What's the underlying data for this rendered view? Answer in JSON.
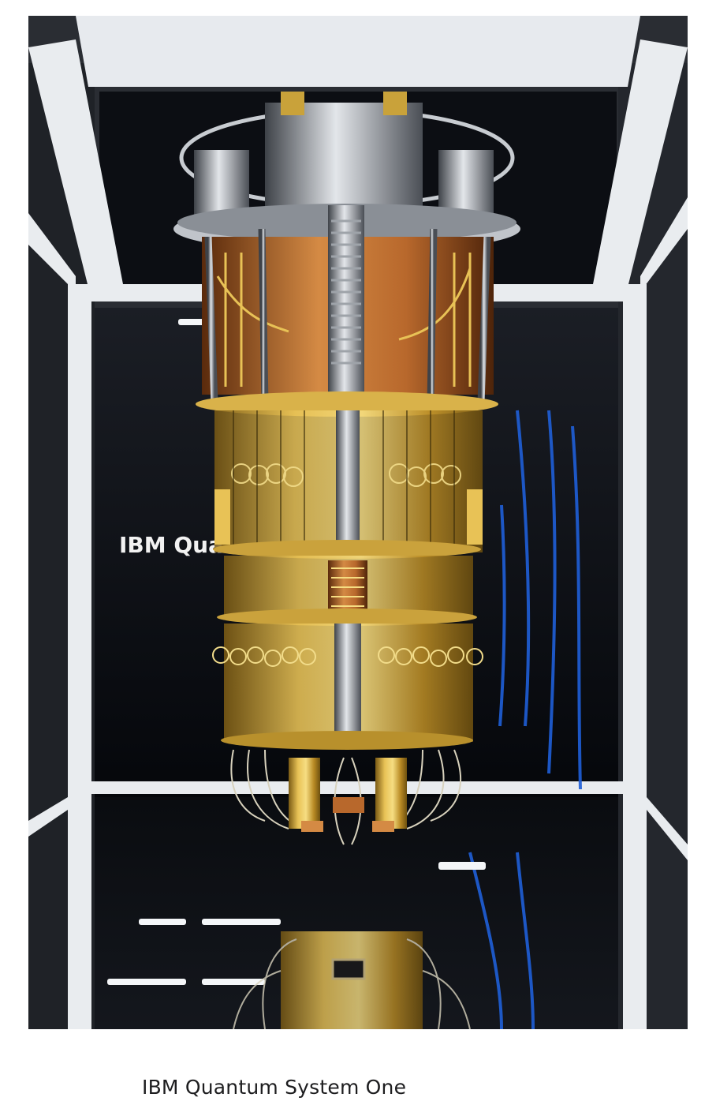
{
  "photo": {
    "subject": "quantum computer dilution refrigerator chandelier",
    "background_text": "IBM Qua"
  },
  "caption": "IBM Quantum System One",
  "colors": {
    "page_bg": "#ffffff",
    "gold": "#c9a23a",
    "copper": "#b8682c",
    "frame_white": "#e9ecef",
    "cable_blue": "#1f5fd8",
    "enclosure_dark": "#0b0d12"
  }
}
